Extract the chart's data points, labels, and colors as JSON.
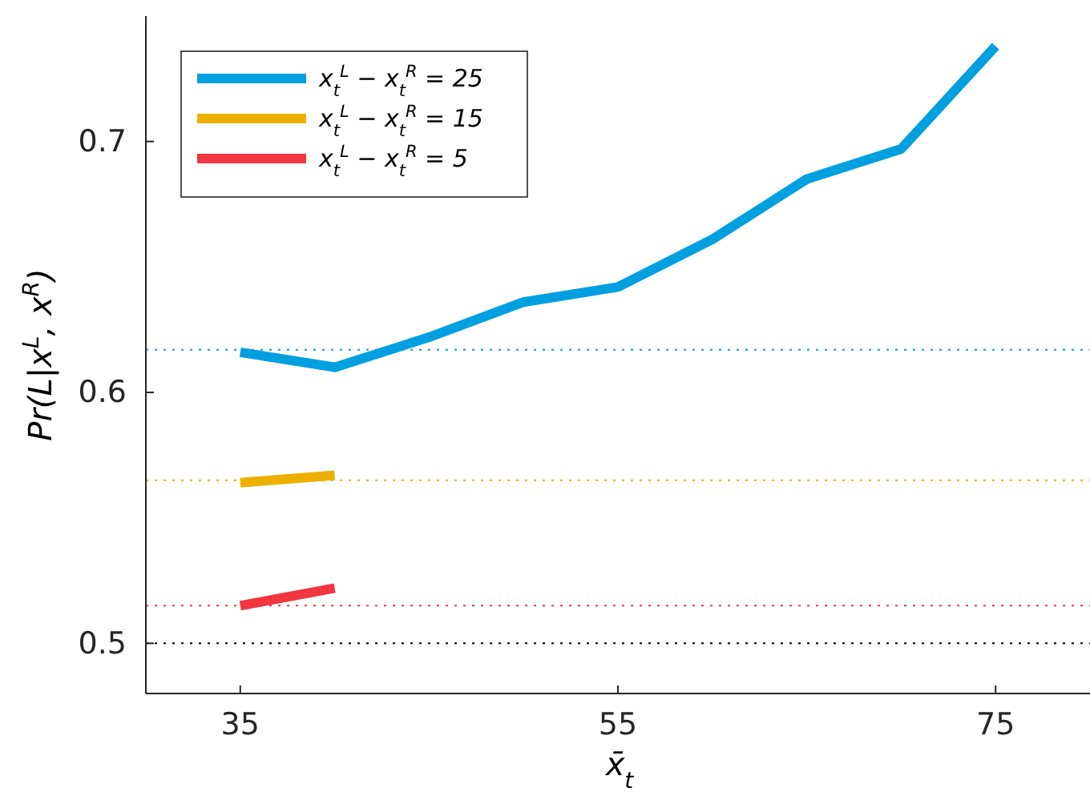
{
  "chart_data": {
    "type": "line",
    "xlabel": "x̄$_{t}$",
    "ylabel": "Pr(L|x$^{L}$, x$^{R}$)",
    "x": [
      35,
      40,
      45,
      50,
      55,
      60,
      65,
      70,
      75
    ],
    "series": [
      {
        "name": "x$_{t}$$^{L}$ − x$_{t}$$^{R}$ = 25",
        "color": "#00a0e0",
        "values": [
          0.616,
          0.61,
          0.622,
          0.636,
          0.642,
          0.661,
          0.685,
          0.697,
          0.738
        ]
      },
      {
        "name": "x$_{t}$$^{L}$ − x$_{t}$$^{R}$ = 15",
        "color": "#edb000",
        "values": [
          0.564,
          0.567,
          null,
          null,
          null,
          null,
          null,
          null,
          null
        ]
      },
      {
        "name": "x$_{t}$$^{L}$ − x$_{t}$$^{R}$ = 5",
        "color": "#f0363e",
        "values": [
          0.515,
          0.522,
          null,
          null,
          null,
          null,
          null,
          null,
          null
        ]
      }
    ],
    "xlim": [
      30,
      80
    ],
    "xticks": [
      35,
      55,
      75
    ],
    "ylim": [
      0.48,
      0.75
    ],
    "yticks": [
      0.5,
      0.6,
      0.7
    ],
    "ref_lines": [
      {
        "axis": "y",
        "value": 0.617,
        "color": "#00a0e0",
        "line_style": "dotted"
      },
      {
        "axis": "y",
        "value": 0.565,
        "color": "#edb000",
        "line_style": "dotted"
      },
      {
        "axis": "y",
        "value": 0.515,
        "color": "#f0363e",
        "line_style": "dotted"
      },
      {
        "axis": "y",
        "value": 0.5,
        "color": "#000000",
        "line_style": "dotted"
      }
    ],
    "legend": "top left",
    "grid": false,
    "line_style": "solid",
    "marker": "none"
  }
}
